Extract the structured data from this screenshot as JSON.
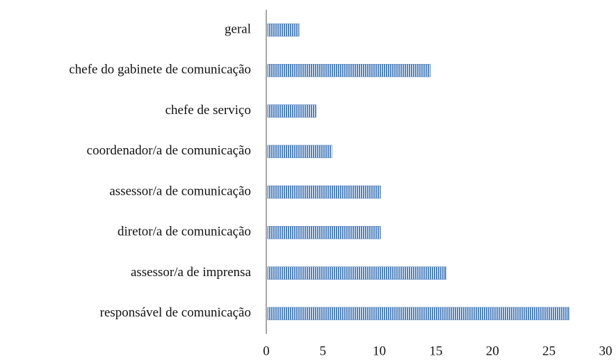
{
  "chart_data": {
    "type": "bar",
    "orientation": "horizontal",
    "categories": [
      "geral",
      "chefe do gabinete de comunicação",
      "chefe de serviço",
      "coordenador/a de comunicação",
      "assessor/a de comunicação",
      "diretor/a de comunicação",
      "assessor/a de imprensa",
      "responsável de comunicação"
    ],
    "values": [
      2.9,
      14.5,
      4.4,
      5.8,
      10.1,
      10.1,
      15.9,
      26.8
    ],
    "color": "#4f81bd",
    "xlim": [
      0,
      30
    ],
    "xticks": [
      0,
      5,
      10,
      15,
      20,
      25,
      30
    ],
    "grid": false
  }
}
